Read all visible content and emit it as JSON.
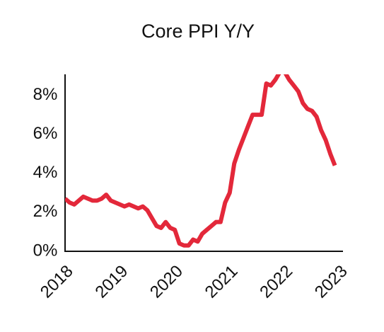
{
  "chart_data": {
    "type": "line",
    "title": "Core PPI Y/Y",
    "x": [
      2018,
      2018.083,
      2018.167,
      2018.25,
      2018.333,
      2018.417,
      2018.5,
      2018.583,
      2018.667,
      2018.75,
      2018.833,
      2018.917,
      2019,
      2019.083,
      2019.167,
      2019.25,
      2019.333,
      2019.417,
      2019.5,
      2019.583,
      2019.667,
      2019.75,
      2019.833,
      2019.917,
      2020,
      2020.083,
      2020.167,
      2020.25,
      2020.333,
      2020.417,
      2020.5,
      2020.583,
      2020.667,
      2020.75,
      2020.833,
      2020.917,
      2021,
      2021.083,
      2021.167,
      2021.25,
      2021.333,
      2021.417,
      2021.5,
      2021.583,
      2021.667,
      2021.75,
      2021.833,
      2021.917,
      2022,
      2022.083,
      2022.167,
      2022.25,
      2022.333,
      2022.417,
      2022.5,
      2022.583,
      2022.667,
      2022.75,
      2022.833,
      2022.917
    ],
    "series": [
      {
        "name": "Core PPI Y/Y",
        "color": "#e3283a",
        "values": [
          2.7,
          2.5,
          2.4,
          2.6,
          2.8,
          2.7,
          2.6,
          2.6,
          2.7,
          2.9,
          2.6,
          2.5,
          2.4,
          2.3,
          2.4,
          2.3,
          2.2,
          2.3,
          2.1,
          1.7,
          1.3,
          1.2,
          1.5,
          1.2,
          1.1,
          0.4,
          0.3,
          0.3,
          0.6,
          0.5,
          0.9,
          1.1,
          1.3,
          1.5,
          1.5,
          2.5,
          3.0,
          4.5,
          5.2,
          5.8,
          6.4,
          7.0,
          7.0,
          7.0,
          8.6,
          8.5,
          8.8,
          9.2,
          9.2,
          8.8,
          8.5,
          8.2,
          7.6,
          7.3,
          7.2,
          6.9,
          6.2,
          5.7,
          5.0,
          4.4
        ]
      }
    ],
    "xlim": [
      2018,
      2023
    ],
    "xticks": [
      2018,
      2019,
      2020,
      2021,
      2022,
      2023
    ],
    "ylim": [
      0,
      9
    ],
    "yticks": [
      {
        "value": 0,
        "label": "0%"
      },
      {
        "value": 2,
        "label": "2%"
      },
      {
        "value": 4,
        "label": "4%"
      },
      {
        "value": 6,
        "label": "6%"
      },
      {
        "value": 8,
        "label": "8%"
      }
    ]
  }
}
